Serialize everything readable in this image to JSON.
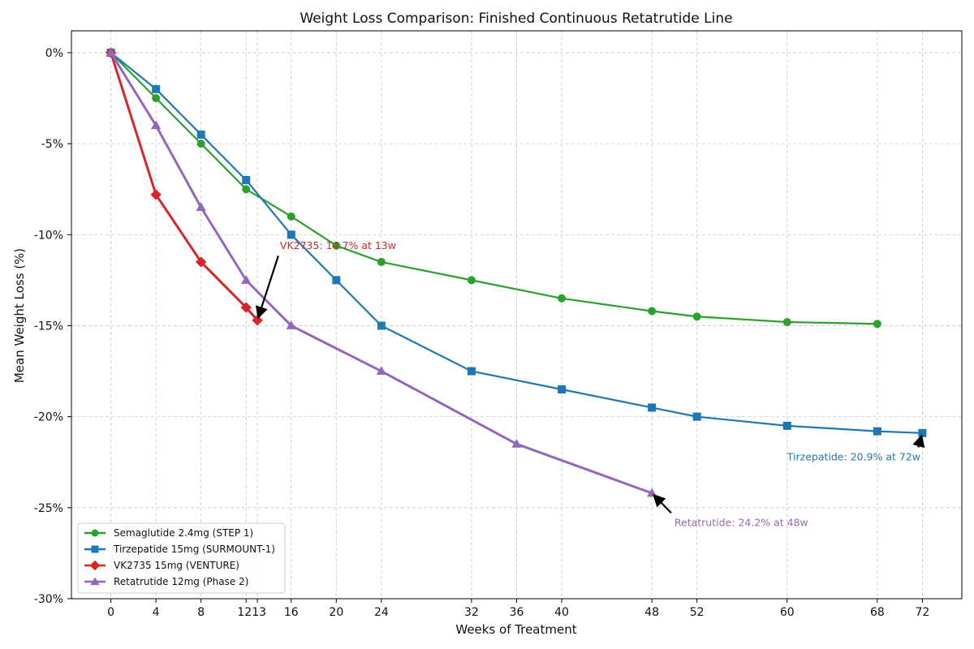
{
  "chart_data": {
    "type": "line",
    "title": "Weight Loss Comparison: Finished Continuous Retatrutide Line",
    "xlabel": "Weeks of Treatment",
    "ylabel": "Mean Weight Loss (%)",
    "xlim": [
      -3.5,
      75.5
    ],
    "ylim": [
      -30,
      1.2
    ],
    "xticks": [
      0,
      4,
      8,
      12,
      13,
      16,
      20,
      24,
      32,
      36,
      40,
      48,
      52,
      60,
      68,
      72
    ],
    "xtick_labels": [
      "0",
      "4",
      "8",
      "12",
      "13",
      "16",
      "20",
      "24",
      "32",
      "36",
      "40",
      "48",
      "52",
      "60",
      "68",
      "72"
    ],
    "yticks": [
      0,
      -5,
      -10,
      -15,
      -20,
      -25,
      -30
    ],
    "ytick_labels": [
      "0%",
      "-5%",
      "-10%",
      "-15%",
      "-20%",
      "-25%",
      "-30%"
    ],
    "grid": true,
    "legend_position": "lower-left",
    "series": [
      {
        "name": "Semaglutide 2.4mg (STEP 1)",
        "color": "#2ca02c",
        "marker": "circle",
        "points": [
          [
            0,
            0
          ],
          [
            4,
            -2.5
          ],
          [
            8,
            -5
          ],
          [
            12,
            -7.5
          ],
          [
            16,
            -9
          ],
          [
            20,
            -10.6
          ],
          [
            24,
            -11.5
          ],
          [
            32,
            -12.5
          ],
          [
            40,
            -13.5
          ],
          [
            48,
            -14.2
          ],
          [
            52,
            -14.5
          ],
          [
            60,
            -14.8
          ],
          [
            68,
            -14.9
          ]
        ]
      },
      {
        "name": "Tirzepatide 15mg (SURMOUNT-1)",
        "color": "#1f77b4",
        "marker": "square",
        "points": [
          [
            0,
            0
          ],
          [
            4,
            -2
          ],
          [
            8,
            -4.5
          ],
          [
            12,
            -7
          ],
          [
            16,
            -10
          ],
          [
            20,
            -12.5
          ],
          [
            24,
            -15
          ],
          [
            32,
            -17.5
          ],
          [
            40,
            -18.5
          ],
          [
            48,
            -19.5
          ],
          [
            52,
            -20
          ],
          [
            60,
            -20.5
          ],
          [
            68,
            -20.8
          ],
          [
            72,
            -20.9
          ]
        ]
      },
      {
        "name": "VK2735 15mg (VENTURE)",
        "color": "#d62728",
        "marker": "diamond",
        "points": [
          [
            0,
            0
          ],
          [
            4,
            -7.8
          ],
          [
            8,
            -11.5
          ],
          [
            12,
            -14
          ],
          [
            13,
            -14.7
          ]
        ]
      },
      {
        "name": "Retatrutide 12mg (Phase 2)",
        "color": "#9467bd",
        "marker": "triangle",
        "points": [
          [
            0,
            0
          ],
          [
            4,
            -4
          ],
          [
            8,
            -8.5
          ],
          [
            12,
            -12.5
          ],
          [
            16,
            -15
          ],
          [
            24,
            -17.5
          ],
          [
            36,
            -21.5
          ],
          [
            48,
            -24.2
          ]
        ]
      }
    ],
    "annotations": [
      {
        "text": "VK2735: 14.7% at 13w",
        "color": "#d62728",
        "point": [
          13,
          -14.7
        ],
        "text_at": [
          15,
          -10.8
        ],
        "anchor": "start"
      },
      {
        "text": "Tirzepatide: 20.9% at 72w",
        "color": "#1f77b4",
        "point": [
          72,
          -20.9
        ],
        "text_at": [
          60,
          -22.4
        ],
        "anchor": "start"
      },
      {
        "text": "Retatrutide: 24.2% at 48w",
        "color": "#9467bd",
        "point": [
          48,
          -24.2
        ],
        "text_at": [
          50,
          -26
        ],
        "anchor": "start"
      }
    ]
  }
}
